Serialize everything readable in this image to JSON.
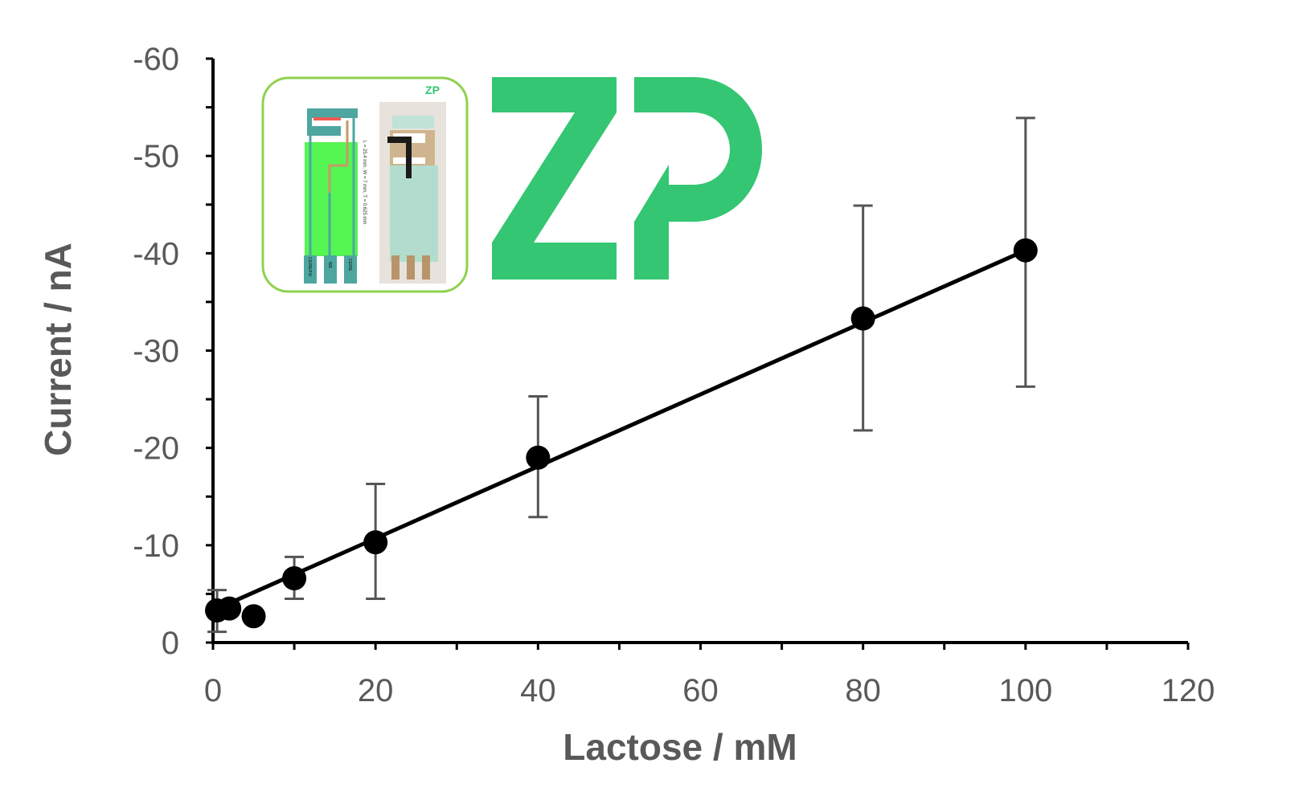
{
  "chart_data": {
    "type": "scatter",
    "title": "",
    "xlabel": "Lactose / mM",
    "ylabel": "Current / nA",
    "xlim": [
      0,
      120
    ],
    "ylim": [
      0,
      -60
    ],
    "y_axis_inverted": true,
    "x_ticks": [
      0,
      20,
      40,
      60,
      80,
      100,
      120
    ],
    "y_ticks": [
      0,
      -10,
      -20,
      -30,
      -40,
      -50,
      -60
    ],
    "grid": false,
    "legend": "none",
    "series": [
      {
        "x": [
          0.5,
          2,
          5,
          10,
          20,
          40,
          80,
          100
        ],
        "y": [
          -3.3,
          -3.5,
          -2.7,
          -6.6,
          -10.3,
          -19.0,
          -33.3,
          -40.3
        ],
        "error_low": [
          -1.1,
          null,
          null,
          -4.5,
          -4.5,
          -12.9,
          -21.8,
          -26.3
        ],
        "error_high": [
          -5.4,
          null,
          null,
          -8.8,
          -16.3,
          -25.3,
          -44.9,
          -53.9
        ]
      }
    ],
    "fit_line": {
      "slope": -0.37,
      "intercept": -3.3,
      "x_range": [
        2,
        100
      ]
    },
    "colors": {
      "markers": "#000000",
      "error_bars": "#555555",
      "axis_text": "#595959",
      "logo": "#34c672",
      "inset_border": "#8fd14f"
    }
  },
  "inset": {
    "dimension_text": "L = 25.4 mm, W = 7 mm, T = 0.625 mm",
    "pad_labels": [
      "CE/RE/Fill",
      "WE",
      "CE/RE"
    ],
    "small_logo": "ZP"
  },
  "logo": {
    "text": "ZP"
  }
}
